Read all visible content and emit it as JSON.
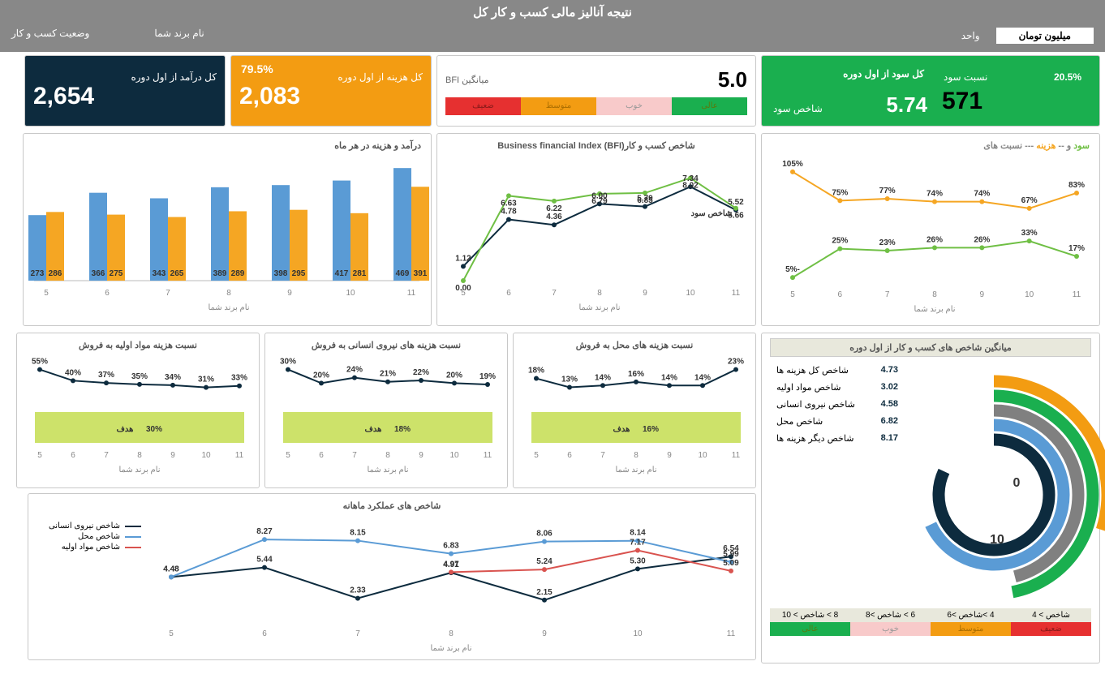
{
  "page_title": "نتیجه  آنالیز مالی کسب و کار کل",
  "unit_label": "واحد",
  "unit_value": "میلیون تومان",
  "brand_label": "نام برند شما",
  "status_label": "وضعیت کسب و کار",
  "kpi": {
    "profit": {
      "title": "کل سود از اول دوره",
      "ratio_label": "نسبت سود",
      "ratio": "20.5%",
      "value": "571",
      "idx_label": "شاخص سود",
      "idx": "5.74"
    },
    "bfi": {
      "label": "میانگین BFI",
      "value": "5.0",
      "bands": [
        {
          "label": "عالی",
          "bg": "#1aaf4f",
          "fg": "#5a7a0e"
        },
        {
          "label": "خوب",
          "bg": "#f8caca",
          "fg": "#999"
        },
        {
          "label": "متوسط",
          "bg": "#f39c12",
          "fg": "#aa6d00"
        },
        {
          "label": "ضعیف",
          "bg": "#e63030",
          "fg": "#8a1a1a"
        }
      ]
    },
    "cost": {
      "title": "کل هزینه از اول دوره",
      "pct": "79.5%",
      "value": "2,083"
    },
    "income": {
      "title": "کل درآمد از اول دوره",
      "value": "2,654"
    }
  },
  "colors": {
    "blue": "#5a9bd5",
    "orange": "#f5a623",
    "green": "#6fbf44",
    "navy": "#0d2b3e",
    "darkgreen": "#1a8a3a",
    "teal": "#2e86ab",
    "red": "#d9534f",
    "grey": "#8a8a8a",
    "lime": "#cde26a",
    "olive": "#a3a338"
  },
  "months": [
    "5",
    "6",
    "7",
    "8",
    "9",
    "10",
    "11"
  ],
  "axis_label": "نام برند شما",
  "ratios": {
    "title": "نسبت های ---سود و --  هزینه",
    "cost": [
      105,
      75,
      77,
      74,
      74,
      67,
      83
    ],
    "profit": [
      -5,
      25,
      23,
      26,
      26,
      33,
      17
    ],
    "cost_color": "#f5a623",
    "profit_color": "#6fbf44"
  },
  "bfi_chart": {
    "title": "شاخص کسب و کار(Business financial  Index  (BFI",
    "sub": "شاخص سود",
    "bfi": [
      1.12,
      4.78,
      4.36,
      6.0,
      5.79,
      7.34,
      5.52
    ],
    "profit": [
      0.0,
      6.63,
      6.22,
      6.79,
      6.85,
      8.02,
      5.66
    ],
    "c1": "#0d2b3e",
    "c2": "#6fbf44"
  },
  "bars": {
    "title": "درآمد و هزینه در هر ماه",
    "income": [
      273,
      366,
      343,
      389,
      398,
      417,
      469
    ],
    "cost": [
      286,
      275,
      265,
      289,
      295,
      281,
      391
    ],
    "c1": "#5a9bd5",
    "c2": "#f5a623"
  },
  "small": [
    {
      "title": "نسبت هزینه های محل به فروش",
      "vals": [
        18,
        13,
        14,
        16,
        14,
        14,
        23
      ],
      "target": "16%",
      "target_label": "هدف"
    },
    {
      "title": "نسبت هزینه های نیروی انسانی  به فروش",
      "vals": [
        30,
        20,
        24,
        21,
        22,
        20,
        19
      ],
      "target": "18%",
      "target_label": "هدف"
    },
    {
      "title": "نسبت هزینه مواد اولیه به فروش",
      "vals": [
        55,
        40,
        37,
        35,
        34,
        31,
        33
      ],
      "target": "30%",
      "target_label": "هدف"
    }
  ],
  "avg_panel": {
    "title": "میانگین شاخص های کسب و کار از اول دوره",
    "items": [
      {
        "label": "شاخص کل هزینه ها",
        "val": "4.73"
      },
      {
        "label": "شاخص مواد اولیه",
        "val": "3.02"
      },
      {
        "label": "شاخص نیروی انسانی",
        "val": "4.58"
      },
      {
        "label": "شاخص محل",
        "val": "6.82"
      },
      {
        "label": "شاخص دیگر هزینه ها",
        "val": "8.17"
      }
    ],
    "arcs": [
      {
        "color": "#f39c12",
        "r": 140,
        "frac": 0.3
      },
      {
        "color": "#1aaf4f",
        "r": 122,
        "frac": 0.47
      },
      {
        "color": "#808080",
        "r": 104,
        "frac": 0.46
      },
      {
        "color": "#5a9bd5",
        "r": 86,
        "frac": 0.68
      },
      {
        "color": "#0d2b3e",
        "r": 68,
        "frac": 0.82
      }
    ],
    "center": [
      "0",
      "10"
    ]
  },
  "monthly": {
    "title": "شاخص های عملکرد ماهانه",
    "legend": [
      {
        "label": "شاخص نیروی انسانی",
        "color": "#0d2b3e"
      },
      {
        "label": "شاخص محل",
        "color": "#5a9bd5"
      },
      {
        "label": "شاخص مواد اولیه",
        "color": "#d9534f"
      }
    ],
    "s1": [
      4.48,
      5.44,
      2.33,
      4.91,
      2.15,
      5.3,
      6.54
    ],
    "s2": [
      4.48,
      8.27,
      8.15,
      6.83,
      8.06,
      8.14,
      5.99
    ],
    "s3": [
      null,
      null,
      null,
      4.97,
      5.24,
      7.17,
      5.09
    ]
  },
  "scale": {
    "labels": [
      "شاخص > 4",
      "4 >شاخص >6",
      "6 > شاخص >8",
      "8 > شاخص > 10"
    ],
    "bands": [
      {
        "label": "ضعیف",
        "bg": "#e63030",
        "fg": "#8a1a1a"
      },
      {
        "label": "متوسط",
        "bg": "#f39c12",
        "fg": "#aa6d00"
      },
      {
        "label": "خوب",
        "bg": "#f8caca",
        "fg": "#999"
      },
      {
        "label": "عالی",
        "bg": "#1aaf4f",
        "fg": "#5a7a0e"
      }
    ]
  }
}
